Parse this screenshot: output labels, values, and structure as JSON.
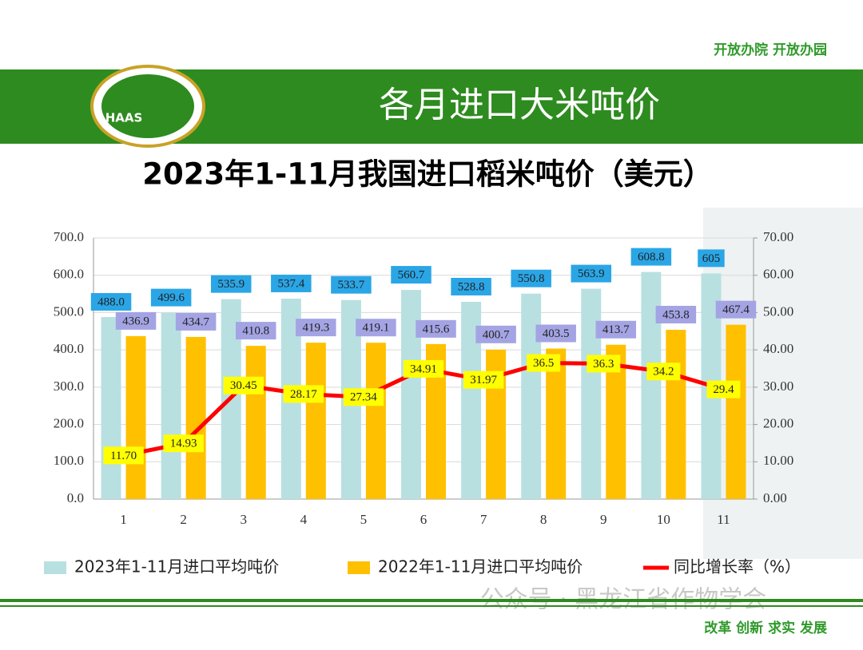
{
  "slide": {
    "header_motto": "开放办院 开放办园",
    "heading": "各月进口大米吨价",
    "logo": "HAAS",
    "watermark": "公众号 · 黑龙江省作物学会",
    "footer_motto": "改革 创新 求实 发展"
  },
  "chart_data": {
    "type": "bar",
    "title": "2023年1-11月我国进口稻米吨价（美元）",
    "categories": [
      "1",
      "2",
      "3",
      "4",
      "5",
      "6",
      "7",
      "8",
      "9",
      "10",
      "11"
    ],
    "series": [
      {
        "name": "2023年1-11月进口平均吨价",
        "color": "#b9e0e1",
        "label_color": "#2aa6e6",
        "values": [
          488,
          499.6,
          535.9,
          537.4,
          533.7,
          560.7,
          528.8,
          550.8,
          563.9,
          608.8,
          605
        ],
        "value_labels": [
          "488.0",
          "499.6",
          "535.9",
          "537.4",
          "533.7",
          "560.7",
          "528.8",
          "550.8",
          "563.9",
          "608.8",
          "605"
        ]
      },
      {
        "name": "2022年1-11月进口平均吨价",
        "color": "#ffc000",
        "label_color": "#a4a4e4",
        "values": [
          436.9,
          434.7,
          410.8,
          419.3,
          419.1,
          415.6,
          400.7,
          403.5,
          413.7,
          453.8,
          467.4
        ]
      },
      {
        "name": "同比增长率（%）",
        "type": "line",
        "axis": "y2",
        "color": "#ff0000",
        "label_color": "#ffff00",
        "values": [
          11.7,
          14.93,
          30.45,
          28.17,
          27.34,
          34.91,
          31.97,
          36.5,
          36.3,
          34.2,
          29.4
        ],
        "value_labels": [
          "11.70",
          "14.93",
          "30.45",
          "28.17",
          "27.34",
          "34.91",
          "31.97",
          "36.5",
          "36.3",
          "34.2",
          "29.4"
        ]
      }
    ],
    "ylim": [
      0,
      700
    ],
    "yticks": [
      {
        "value": 0,
        "label": "0.0"
      },
      {
        "value": 100,
        "label": "100.0"
      },
      {
        "value": 200,
        "label": "200.0"
      },
      {
        "value": 300,
        "label": "300.0"
      },
      {
        "value": 400,
        "label": "400.0"
      },
      {
        "value": 500,
        "label": "500.0"
      },
      {
        "value": 600,
        "label": "600.0"
      },
      {
        "value": 700,
        "label": "700.0"
      }
    ],
    "y2lim": [
      0,
      70
    ],
    "y2ticks": [
      {
        "value": 0,
        "label": "0.00"
      },
      {
        "value": 10,
        "label": "10.00"
      },
      {
        "value": 20,
        "label": "20.00"
      },
      {
        "value": 30,
        "label": "30.00"
      },
      {
        "value": 40,
        "label": "40.00"
      },
      {
        "value": 50,
        "label": "50.00"
      },
      {
        "value": 60,
        "label": "60.00"
      },
      {
        "value": 70,
        "label": "70.00"
      }
    ],
    "grid": true,
    "legend": "bottom"
  }
}
